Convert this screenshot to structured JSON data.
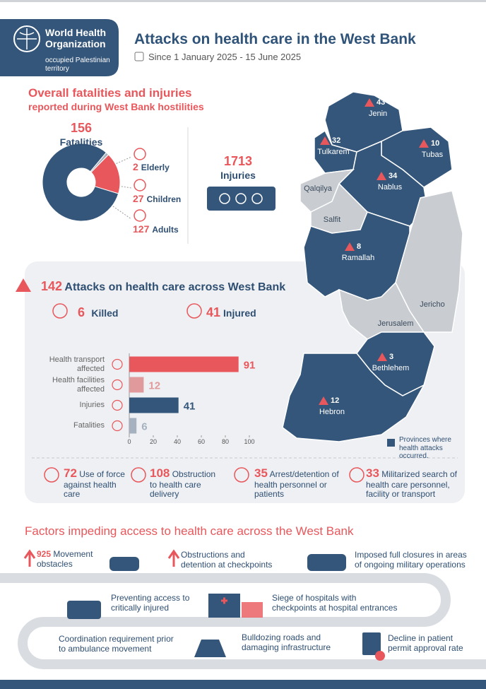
{
  "header": {
    "org": "World Health Organization",
    "territory": "occupied Palestinian territory",
    "title": "Attacks on health care in the West Bank",
    "date": "Since 1 January 2025 - 15 June 2025"
  },
  "overview": {
    "title": "Overall fatalities and injuries",
    "subtitle": "reported during West Bank hostilities",
    "fatalities_total": 156,
    "fatalities_label": "Fatalities",
    "injuries_total": 1713,
    "injuries_label": "Injuries"
  },
  "chart_data": [
    {
      "type": "pie",
      "donut": true,
      "categories": [
        "Elderly",
        "Children",
        "Adults"
      ],
      "values": [
        2,
        27,
        127
      ],
      "colors": [
        "#a9b4c1",
        "#e8575b",
        "#34567a"
      ]
    },
    {
      "type": "bar",
      "orientation": "horizontal",
      "categories": [
        "Health transport affected",
        "Health facilities affected",
        "Injuries",
        "Fatalities"
      ],
      "values": [
        91,
        12,
        41,
        6
      ],
      "colors": [
        "#e8575b",
        "#e09a9c",
        "#34567a",
        "#a5b1bf"
      ],
      "xlim": [
        0,
        100
      ],
      "xticks": [
        0,
        20,
        40,
        60,
        80,
        100
      ]
    }
  ],
  "attacks": {
    "total": 142,
    "title": "Attacks on health care across West Bank",
    "killed": {
      "value": 6,
      "label": "Killed"
    },
    "injured": {
      "value": 41,
      "label": "Injured"
    },
    "types": [
      {
        "value": 72,
        "label": "Use of force against health care"
      },
      {
        "value": 108,
        "label": "Obstruction to health care delivery"
      },
      {
        "value": 35,
        "label": "Arrest/detention of health personnel or patients"
      },
      {
        "value": 33,
        "label": "Militarized search of health care personnel, facility or transport"
      }
    ]
  },
  "map": {
    "provinces": [
      {
        "name": "Jenin",
        "attacks": 43,
        "affected": true
      },
      {
        "name": "Tulkarem",
        "attacks": 32,
        "affected": true
      },
      {
        "name": "Tubas",
        "attacks": 10,
        "affected": true
      },
      {
        "name": "Nablus",
        "attacks": 34,
        "affected": true
      },
      {
        "name": "Qalqilya",
        "affected": false
      },
      {
        "name": "Salfit",
        "affected": false
      },
      {
        "name": "Ramallah",
        "attacks": 8,
        "affected": true
      },
      {
        "name": "Jericho",
        "affected": false
      },
      {
        "name": "Jerusalem",
        "affected": false
      },
      {
        "name": "Bethlehem",
        "attacks": 3,
        "affected": true
      },
      {
        "name": "Hebron",
        "attacks": 12,
        "affected": true
      }
    ],
    "legend": "Provinces where health attacks occurred.",
    "affected_color": "#34567a",
    "other_color": "#c9cdd2"
  },
  "factors": {
    "title": "Factors impeding access to health care across the West Bank",
    "items": [
      {
        "value": 925,
        "label": "Movement obstacles"
      },
      {
        "label": "Obstructions and detention at checkpoints"
      },
      {
        "label": "Imposed full closures in areas of ongoing military operations"
      },
      {
        "label": "Preventing access to critically injured"
      },
      {
        "label": "Siege of hospitals with checkpoints at hospital entrances"
      },
      {
        "label": "Coordination requirement prior to ambulance movement"
      },
      {
        "label": "Bulldozing roads and damaging infrastructure"
      },
      {
        "label": "Decline in patient permit approval rate"
      }
    ]
  }
}
